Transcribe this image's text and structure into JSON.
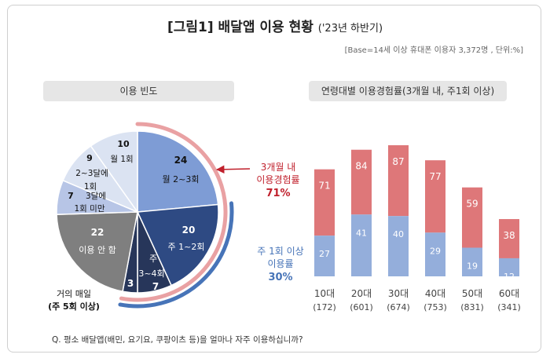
{
  "header": {
    "title": "[그림1] 배달앱 이용 현황",
    "title_sub": "('23년 하반기)",
    "subtitle": "[Base=14세 이상 휴대폰 이용자 3,372명 , 단위:%]"
  },
  "colors": {
    "bar_top": "#de7779",
    "bar_bottom": "#94aedb",
    "pie_dark": "#27365a",
    "pie_navy": "#2e4a83",
    "pie_blue": "#7e9cd5",
    "pie_light1": "#b7c5e6",
    "pie_light2": "#dbe3f2",
    "pie_gray": "#7f7f7f",
    "accent_red": "#c0202c",
    "accent_blue": "#4774b8"
  },
  "chart_data": [
    {
      "type": "pie",
      "title": "이용 빈도",
      "slices": [
        {
          "label": "월 2~3회",
          "value": 24
        },
        {
          "label": "주 1~2회",
          "value": 20
        },
        {
          "label": "주 3~4회",
          "value": 7
        },
        {
          "label": "거의 매일 (주 5회 이상)",
          "value": 3
        },
        {
          "label": "이용 안 함",
          "value": 22
        },
        {
          "label": "3달에 1회 미만",
          "value": 7
        },
        {
          "label": "2~3달에 1회",
          "value": 9
        },
        {
          "label": "월 1회",
          "value": 10
        }
      ],
      "annotations": {
        "three_months_line1": "3개월 내",
        "three_months_line2": "이용경험률",
        "three_months_value": "71%",
        "weekly_line1": "주 1회 이상",
        "weekly_line2": "이용률",
        "weekly_value": "30%",
        "daily_line1": "거의 매일",
        "daily_line2": "(주 5회 이상)"
      }
    },
    {
      "type": "bar",
      "title": "연령대별 이용경험률(3개월 내, 주1회 이상)",
      "categories": [
        "10대",
        "20대",
        "30대",
        "40대",
        "50대",
        "60대"
      ],
      "sample_sizes": [
        "(172)",
        "(601)",
        "(674)",
        "(753)",
        "(831)",
        "(341)"
      ],
      "series": [
        {
          "name": "3개월 내 이용경험률",
          "values": [
            71,
            84,
            87,
            77,
            59,
            38
          ]
        },
        {
          "name": "주 1회 이상 이용률",
          "values": [
            27,
            41,
            40,
            29,
            19,
            12
          ]
        }
      ],
      "ylim": [
        0,
        100
      ]
    }
  ],
  "footnote": "Q. 평소 배달앱(배민, 요기요, 쿠팡이츠 등)을 얼마나 자주 이용하십니까?"
}
